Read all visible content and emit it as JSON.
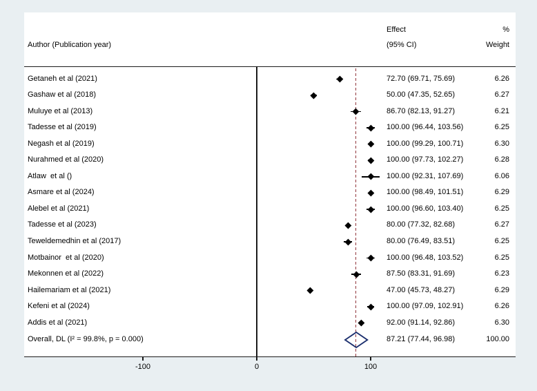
{
  "chart_data": {
    "type": "forest",
    "title": "",
    "columns": {
      "author": "Author (Publication year)",
      "effect_line1": "Effect",
      "effect_line2": "(95% CI)",
      "weight_line1": "%",
      "weight_line2": "Weight"
    },
    "axis": {
      "ticks": [
        {
          "label": "-100",
          "value": -100
        },
        {
          "label": "0",
          "value": 0
        },
        {
          "label": "100",
          "value": 100
        }
      ],
      "xlim": [
        -204,
        227
      ],
      "zero_line_value": 0,
      "reference_line_value": 87.21,
      "grid": false
    },
    "studies": [
      {
        "label": "Getaneh et al (2021)",
        "effect": 72.7,
        "ci_low": 69.71,
        "ci_high": 75.69,
        "effect_text": "72.70 (69.71, 75.69)",
        "weight_text": "6.26"
      },
      {
        "label": "Gashaw et al (2018)",
        "effect": 50.0,
        "ci_low": 47.35,
        "ci_high": 52.65,
        "effect_text": "50.00 (47.35, 52.65)",
        "weight_text": "6.27"
      },
      {
        "label": "Muluye et al (2013)",
        "effect": 86.7,
        "ci_low": 82.13,
        "ci_high": 91.27,
        "effect_text": "86.70 (82.13, 91.27)",
        "weight_text": "6.21"
      },
      {
        "label": "Tadesse et al (2019)",
        "effect": 100.0,
        "ci_low": 96.44,
        "ci_high": 103.56,
        "effect_text": "100.00 (96.44, 103.56)",
        "weight_text": "6.25"
      },
      {
        "label": "Negash et al (2019)",
        "effect": 100.0,
        "ci_low": 99.29,
        "ci_high": 100.71,
        "effect_text": "100.00 (99.29, 100.71)",
        "weight_text": "6.30"
      },
      {
        "label": "Nurahmed et al (2020)",
        "effect": 100.0,
        "ci_low": 97.73,
        "ci_high": 102.27,
        "effect_text": "100.00 (97.73, 102.27)",
        "weight_text": "6.28"
      },
      {
        "label": "Atlaw  et al ()",
        "effect": 100.0,
        "ci_low": 92.31,
        "ci_high": 107.69,
        "effect_text": "100.00 (92.31, 107.69)",
        "weight_text": "6.06"
      },
      {
        "label": "Asmare et al (2024)",
        "effect": 100.0,
        "ci_low": 98.49,
        "ci_high": 101.51,
        "effect_text": "100.00 (98.49, 101.51)",
        "weight_text": "6.29"
      },
      {
        "label": "Alebel et al (2021)",
        "effect": 100.0,
        "ci_low": 96.6,
        "ci_high": 103.4,
        "effect_text": "100.00 (96.60, 103.40)",
        "weight_text": "6.25"
      },
      {
        "label": "Tadesse et al (2023)",
        "effect": 80.0,
        "ci_low": 77.32,
        "ci_high": 82.68,
        "effect_text": "80.00 (77.32, 82.68)",
        "weight_text": "6.27"
      },
      {
        "label": "Teweldemedhin et al (2017)",
        "effect": 80.0,
        "ci_low": 76.49,
        "ci_high": 83.51,
        "effect_text": "80.00 (76.49, 83.51)",
        "weight_text": "6.25"
      },
      {
        "label": "Motbainor  et al (2020)",
        "effect": 100.0,
        "ci_low": 96.48,
        "ci_high": 103.52,
        "effect_text": "100.00 (96.48, 103.52)",
        "weight_text": "6.25"
      },
      {
        "label": "Mekonnen et al (2022)",
        "effect": 87.5,
        "ci_low": 83.31,
        "ci_high": 91.69,
        "effect_text": "87.50 (83.31, 91.69)",
        "weight_text": "6.23"
      },
      {
        "label": "Hailemariam et al (2021)",
        "effect": 47.0,
        "ci_low": 45.73,
        "ci_high": 48.27,
        "effect_text": "47.00 (45.73, 48.27)",
        "weight_text": "6.29"
      },
      {
        "label": "Kefeni et al (2024)",
        "effect": 100.0,
        "ci_low": 97.09,
        "ci_high": 102.91,
        "effect_text": "100.00 (97.09, 102.91)",
        "weight_text": "6.26"
      },
      {
        "label": "Addis et al (2021)",
        "effect": 92.0,
        "ci_low": 91.14,
        "ci_high": 92.86,
        "effect_text": "92.00 (91.14, 92.86)",
        "weight_text": "6.30"
      }
    ],
    "overall": {
      "label": "Overall, DL (I² = 99.8%, p = 0.000)",
      "effect": 87.21,
      "ci_low": 77.44,
      "ci_high": 96.98,
      "effect_text": "87.21 (77.44, 96.98)",
      "weight_text": "100.00"
    }
  },
  "colors": {
    "background": "#e9eff2",
    "plot_background": "#ffffff",
    "text": "#000000",
    "axis_line": "#1a1a1a",
    "zero_line": "#1a1a1a",
    "marker": "#000000",
    "ci_line": "#000000",
    "reference_dash": "#90353b",
    "diamond_outline": "#1c2f6e"
  }
}
